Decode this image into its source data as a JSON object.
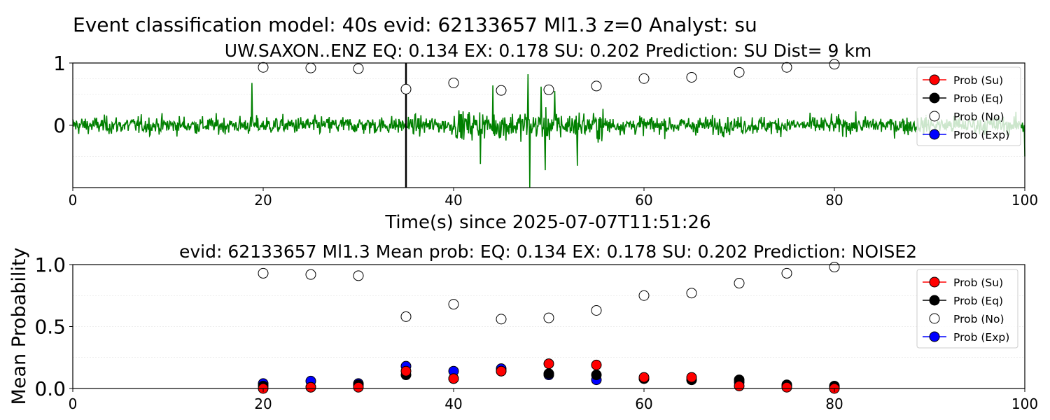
{
  "suptitle": "Event classification model: 40s evid: 62133657 Ml1.3 z=0 Analyst: su",
  "colors": {
    "su": "#ff0000",
    "eq": "#000000",
    "no": "#ffffff",
    "exp": "#0000ff",
    "waveform": "#008000",
    "marker": "#000000"
  },
  "chart_data": [
    {
      "type": "line",
      "title": "UW.SAXON..ENZ   EQ: 0.134  EX: 0.178  SU: 0.202   Prediction: SU    Dist= 9 km",
      "xlabel": "Time(s) since 2025-07-07T11:51:26",
      "ylabel": "",
      "xlim": [
        0,
        100
      ],
      "ylim": [
        -1,
        1
      ],
      "xticks": [
        "0",
        "20",
        "40",
        "60",
        "80",
        "100"
      ],
      "yticks": [
        "1",
        "0"
      ],
      "vline_x": 35,
      "waveform_name": "UW.SAXON..ENZ",
      "waveform_spikes": [
        {
          "x": 18.8,
          "y": 0.68
        },
        {
          "x": 42.8,
          "y": -0.62
        },
        {
          "x": 44.1,
          "y": 0.64
        },
        {
          "x": 47.8,
          "y": 0.82
        },
        {
          "x": 48.0,
          "y": -1.0
        },
        {
          "x": 49.2,
          "y": 0.62
        },
        {
          "x": 49.6,
          "y": -0.72
        },
        {
          "x": 50.6,
          "y": 0.55
        },
        {
          "x": 53.0,
          "y": -0.65
        },
        {
          "x": 100,
          "y": -0.5
        }
      ],
      "x": [
        20,
        25,
        30,
        35,
        40,
        45,
        50,
        55,
        60,
        65,
        70,
        75,
        80
      ],
      "series": [
        {
          "name": "Prob (No)",
          "key": "no",
          "values": [
            0.93,
            0.92,
            0.91,
            0.58,
            0.68,
            0.56,
            0.57,
            0.63,
            0.75,
            0.77,
            0.85,
            0.93,
            0.98
          ]
        }
      ],
      "legend": [
        "Prob (Su)",
        "Prob (Eq)",
        "Prob (No)",
        "Prob (Exp)"
      ],
      "legend_keys": [
        "su",
        "eq",
        "no",
        "exp"
      ],
      "legend_placement": "upper-right"
    },
    {
      "type": "scatter",
      "title": "evid: 62133657  Ml1.3   Mean prob:   EQ: 0.134  EX: 0.178  SU: 0.202   Prediction: NOISE2",
      "xlabel": "",
      "ylabel": "Mean Probability",
      "xlim": [
        0,
        100
      ],
      "ylim": [
        0,
        1
      ],
      "xticks": [
        "0",
        "20",
        "40",
        "60",
        "80",
        "100"
      ],
      "yticks": [
        "0.0",
        "0.5",
        "1.0"
      ],
      "x": [
        20,
        25,
        30,
        35,
        40,
        45,
        50,
        55,
        60,
        65,
        70,
        75,
        80
      ],
      "series": [
        {
          "name": "Prob (No)",
          "key": "no",
          "values": [
            0.93,
            0.92,
            0.91,
            0.58,
            0.68,
            0.56,
            0.57,
            0.63,
            0.75,
            0.77,
            0.85,
            0.93,
            0.98
          ]
        },
        {
          "name": "Prob (Exp)",
          "key": "exp",
          "values": [
            0.04,
            0.06,
            0.04,
            0.18,
            0.14,
            0.16,
            0.11,
            0.07,
            0.08,
            0.07,
            0.05,
            0.02,
            0.01
          ]
        },
        {
          "name": "Prob (Eq)",
          "key": "eq",
          "values": [
            0.02,
            0.01,
            0.03,
            0.11,
            0.08,
            0.14,
            0.12,
            0.11,
            0.08,
            0.07,
            0.07,
            0.03,
            0.02
          ]
        },
        {
          "name": "Prob (Su)",
          "key": "su",
          "values": [
            0.0,
            0.01,
            0.01,
            0.14,
            0.08,
            0.14,
            0.2,
            0.19,
            0.09,
            0.09,
            0.02,
            0.01,
            0.0
          ]
        }
      ],
      "legend": [
        "Prob (Su)",
        "Prob (Eq)",
        "Prob (No)",
        "Prob (Exp)"
      ],
      "legend_keys": [
        "su",
        "eq",
        "no",
        "exp"
      ],
      "legend_placement": "upper-right"
    }
  ]
}
